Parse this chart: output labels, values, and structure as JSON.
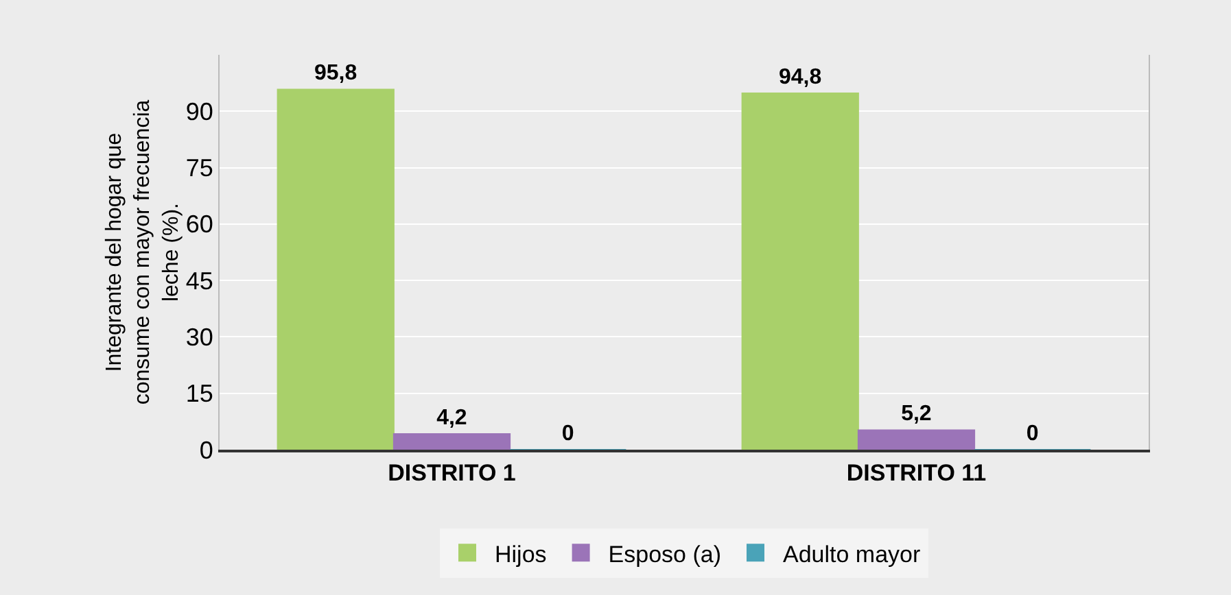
{
  "chart_data": {
    "type": "bar",
    "ylabel": "Integrante del hogar que consume con mayor frecuencia leche (%).",
    "categories": [
      "DISTRITO 1",
      "DISTRITO 11"
    ],
    "series": [
      {
        "name": "Hijos",
        "color": "#a9d06a",
        "values": [
          95.8,
          94.8
        ],
        "value_labels": [
          "95,8",
          "94,8"
        ]
      },
      {
        "name": "Esposo (a)",
        "color": "#9b74b8",
        "values": [
          4.2,
          5.2
        ],
        "value_labels": [
          "4,2",
          "5,2"
        ]
      },
      {
        "name": "Adulto mayor",
        "color": "#4aa3b8",
        "values": [
          0,
          0
        ],
        "value_labels": [
          "0",
          "0"
        ]
      }
    ],
    "ylim": [
      0,
      105
    ],
    "yticks": [
      0,
      15,
      30,
      45,
      60,
      75,
      90
    ],
    "grid": "y",
    "legend": "bottom"
  }
}
